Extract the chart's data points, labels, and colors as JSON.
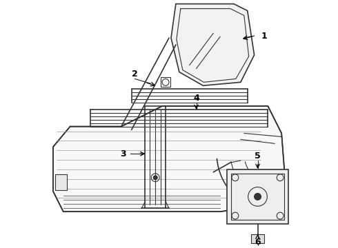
{
  "background_color": "#ffffff",
  "line_color": "#333333",
  "label_color": "#000000",
  "fig_width": 4.9,
  "fig_height": 3.6,
  "dpi": 100
}
